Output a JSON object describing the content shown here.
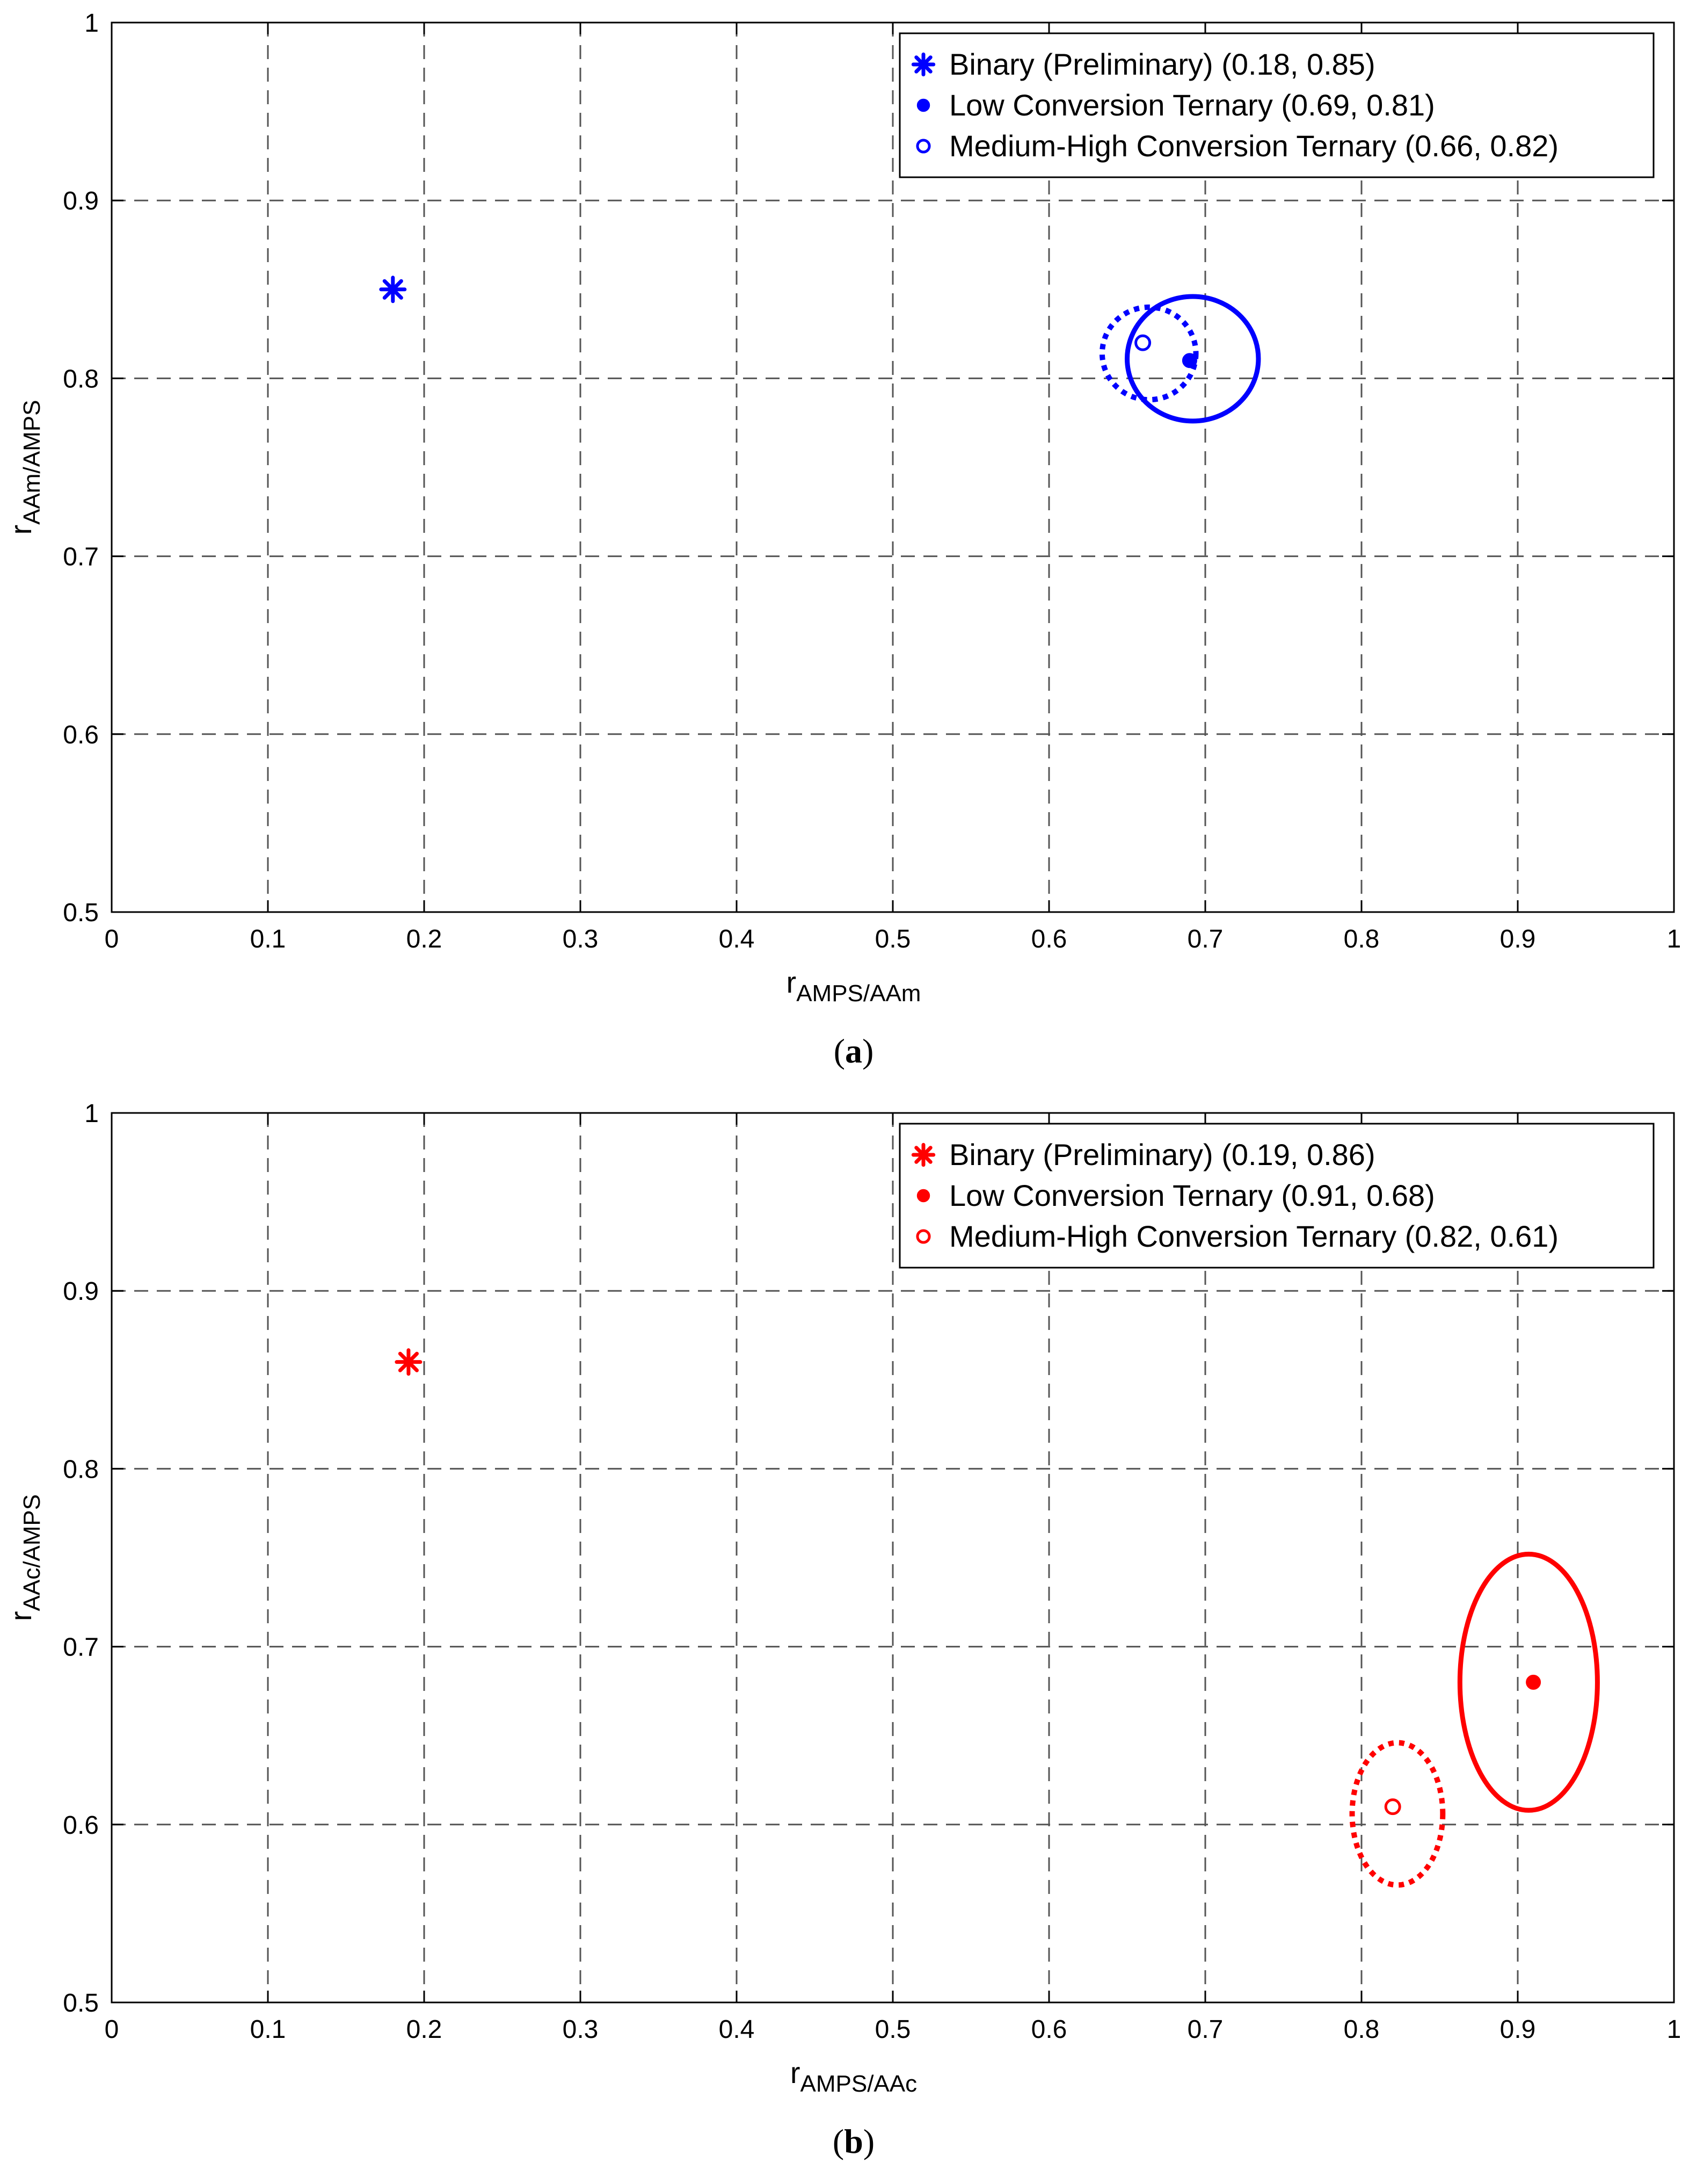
{
  "chart_data": [
    {
      "type": "scatter",
      "panel_label": "a",
      "xlabel": {
        "main": "r",
        "sub": "AMPS/AAm"
      },
      "ylabel": {
        "main": "r",
        "sub": "AAm/AMPS"
      },
      "xlim": [
        0,
        1
      ],
      "ylim": [
        0.5,
        1
      ],
      "xticks": [
        "0",
        "0.1",
        "0.2",
        "0.3",
        "0.4",
        "0.5",
        "0.6",
        "0.7",
        "0.8",
        "0.9",
        "1"
      ],
      "yticks": [
        "0.5",
        "0.6",
        "0.7",
        "0.8",
        "0.9",
        "1"
      ],
      "grid": true,
      "legend_position": "top-right",
      "color": "#0000ff",
      "series": [
        {
          "name": "Binary (Preliminary) (0.18, 0.85)",
          "marker": "asterisk",
          "x": 0.18,
          "y": 0.85
        },
        {
          "name": "Low Conversion Ternary (0.69, 0.81)",
          "marker": "filled-circle",
          "x": 0.69,
          "y": 0.81
        },
        {
          "name": "Medium-High Conversion Ternary (0.66, 0.82)",
          "marker": "open-circle",
          "x": 0.66,
          "y": 0.82
        }
      ],
      "confidence_regions": [
        {
          "series": "Low Conversion Ternary (0.69, 0.81)",
          "line": "solid",
          "cx": 0.692,
          "cy": 0.811,
          "rx": 0.042,
          "ry": 0.035
        },
        {
          "series": "Medium-High Conversion Ternary (0.66, 0.82)",
          "line": "dotted",
          "cx": 0.664,
          "cy": 0.814,
          "rx": 0.03,
          "ry": 0.026
        }
      ]
    },
    {
      "type": "scatter",
      "panel_label": "b",
      "xlabel": {
        "main": "r",
        "sub": "AMPS/AAc"
      },
      "ylabel": {
        "main": "r",
        "sub": "AAc/AMPS"
      },
      "xlim": [
        0,
        1
      ],
      "ylim": [
        0.5,
        1
      ],
      "xticks": [
        "0",
        "0.1",
        "0.2",
        "0.3",
        "0.4",
        "0.5",
        "0.6",
        "0.7",
        "0.8",
        "0.9",
        "1"
      ],
      "yticks": [
        "0.5",
        "0.6",
        "0.7",
        "0.8",
        "0.9",
        "1"
      ],
      "grid": true,
      "legend_position": "top-right",
      "color": "#ff0000",
      "series": [
        {
          "name": "Binary (Preliminary) (0.19, 0.86)",
          "marker": "asterisk",
          "x": 0.19,
          "y": 0.86
        },
        {
          "name": "Low Conversion Ternary (0.91, 0.68)",
          "marker": "filled-circle",
          "x": 0.91,
          "y": 0.68
        },
        {
          "name": "Medium-High Conversion Ternary (0.82, 0.61)",
          "marker": "open-circle",
          "x": 0.82,
          "y": 0.61
        }
      ],
      "confidence_regions": [
        {
          "series": "Low Conversion Ternary (0.91, 0.68)",
          "line": "solid",
          "cx": 0.907,
          "cy": 0.68,
          "rx": 0.044,
          "ry": 0.072
        },
        {
          "series": "Medium-High Conversion Ternary (0.82, 0.61)",
          "line": "dotted",
          "cx": 0.823,
          "cy": 0.606,
          "rx": 0.029,
          "ry": 0.04
        }
      ]
    }
  ]
}
